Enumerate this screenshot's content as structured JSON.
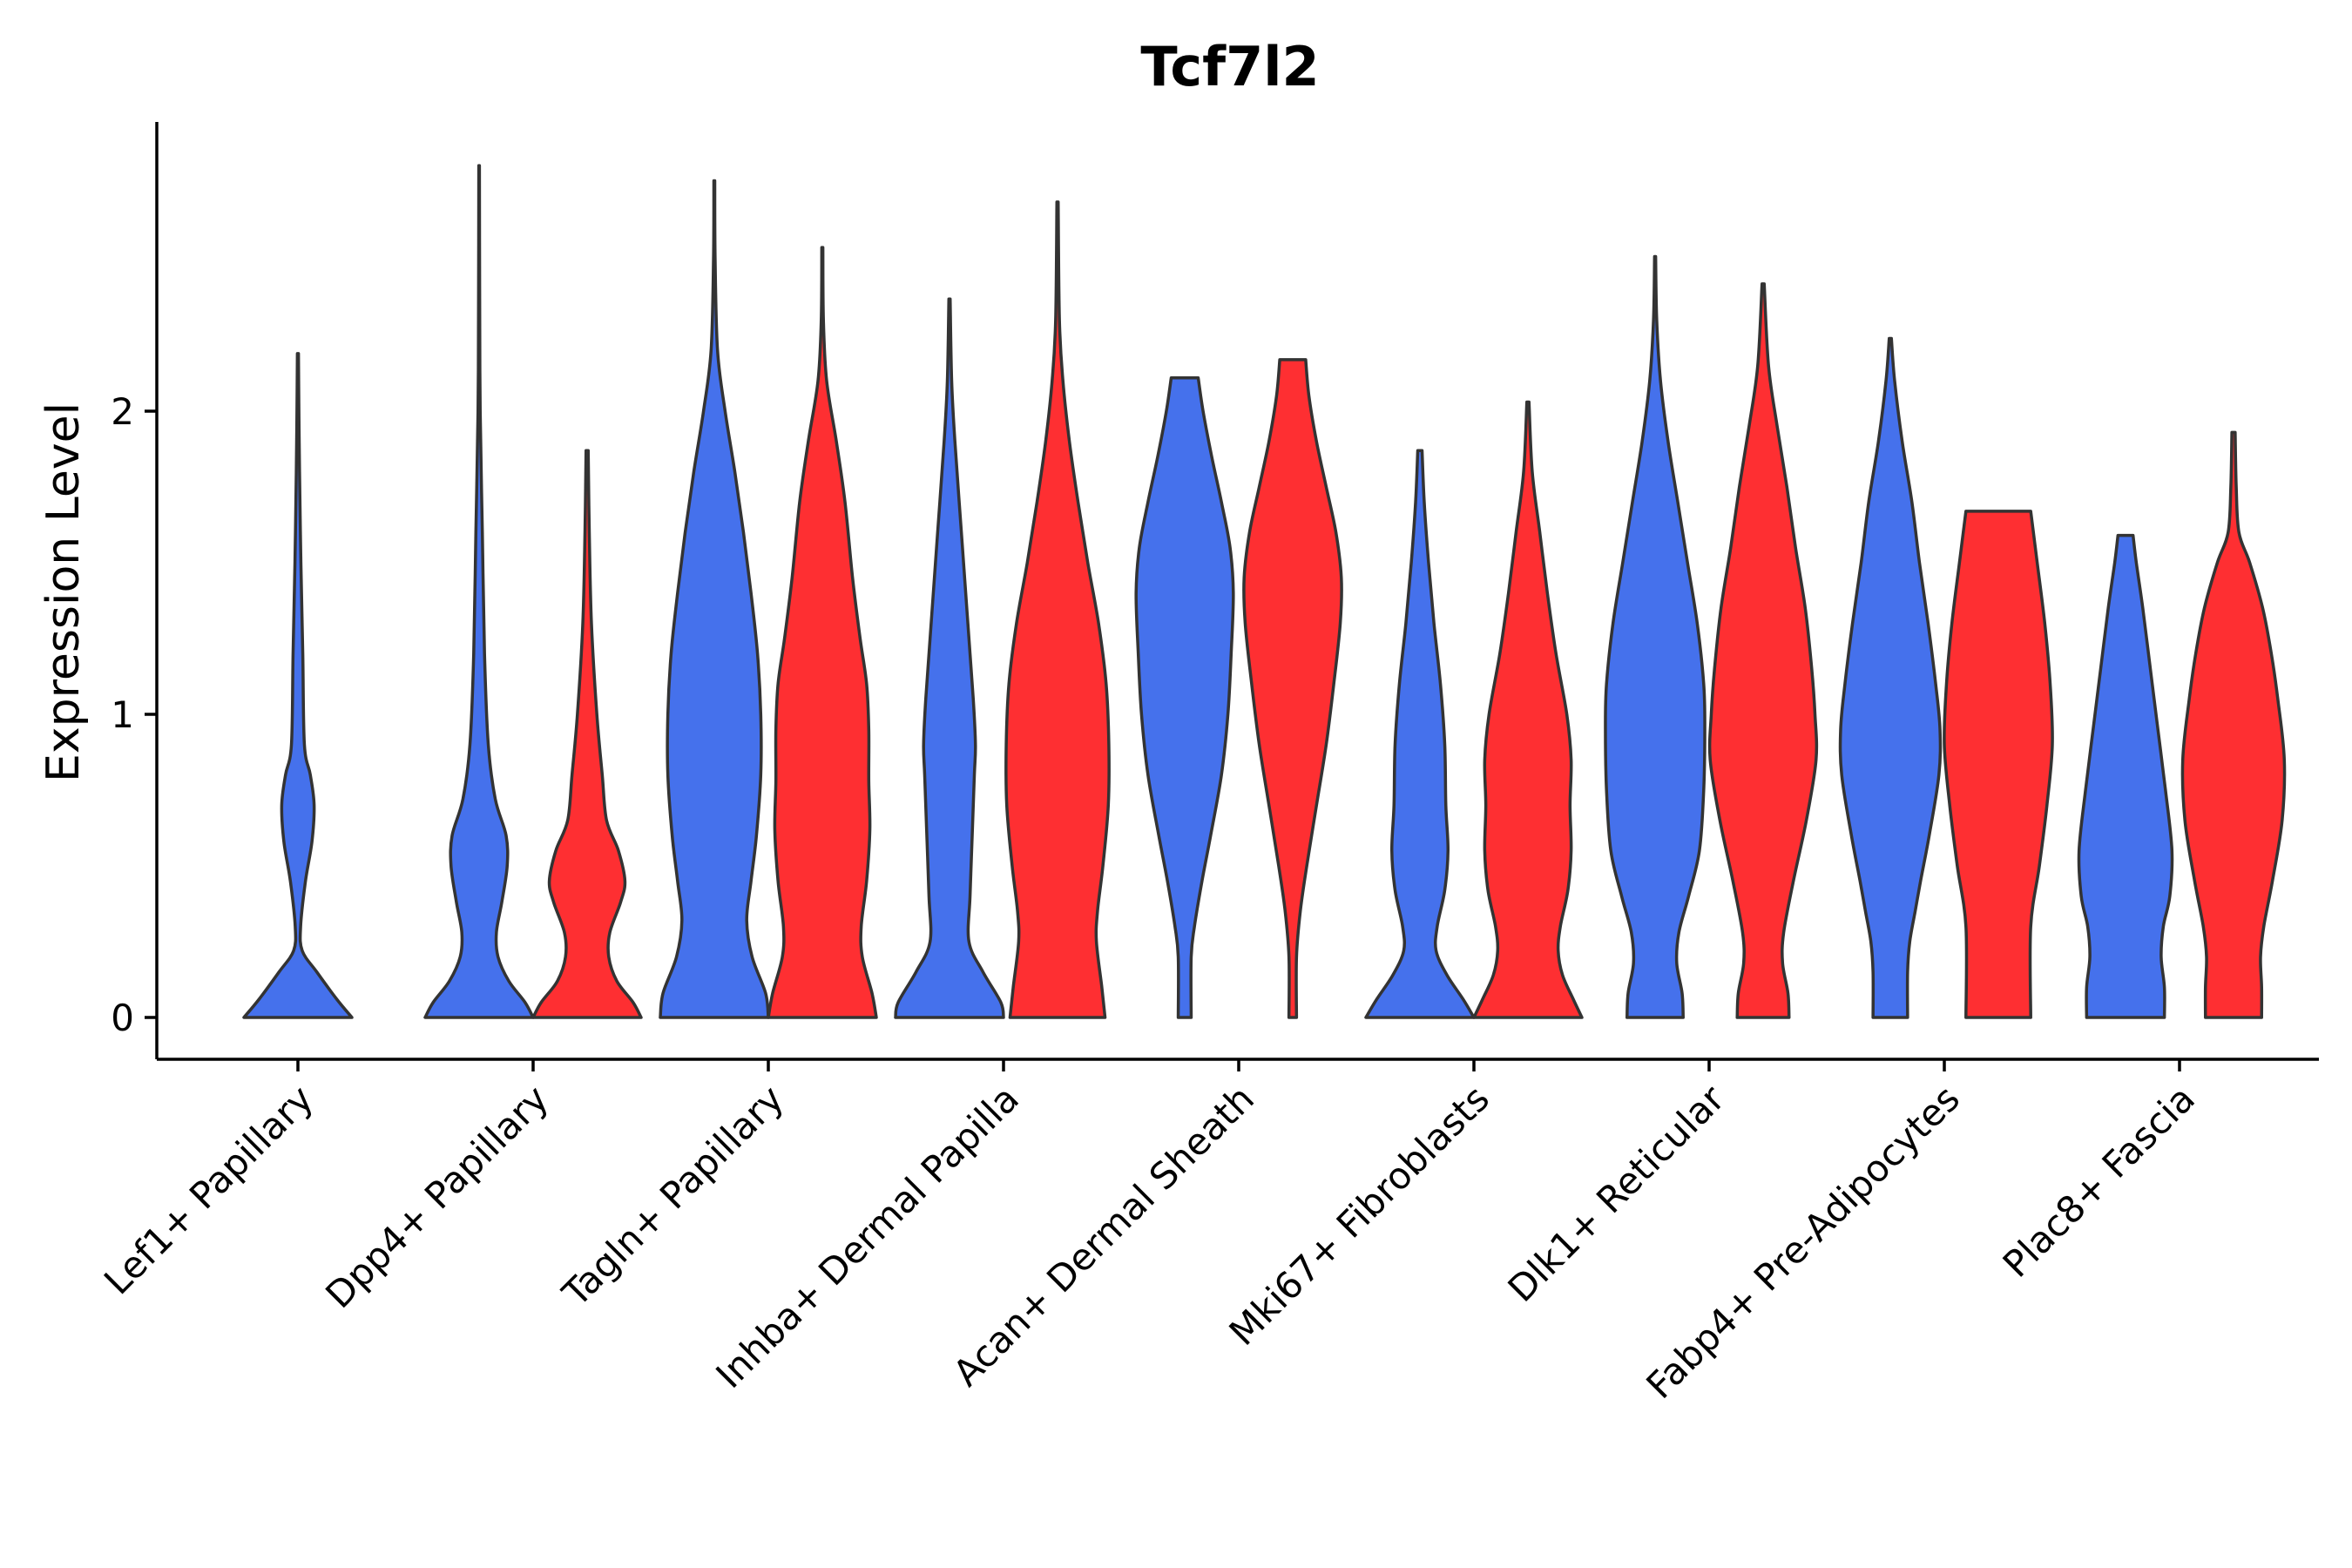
{
  "chart_data": {
    "type": "violin",
    "title": "Tcf7l2",
    "xlabel": "",
    "ylabel": "Expression Level",
    "ylim": [
      -0.14,
      2.97
    ],
    "y_ticks": [
      0,
      1,
      2
    ],
    "grid": false,
    "legend": "none",
    "categories": [
      "Lef1+ Papillary",
      "Dpp4+ Papillary",
      "Tagln+ Papillary",
      "Inhba+ Dermal Papilla",
      "Acan+ Dermal Sheath",
      "Mki67+ Fibroblasts",
      "Dlk1+ Reticular",
      "Fabp4+ Pre-Adipocytes",
      "Plac8+ Fascia"
    ],
    "colors": {
      "blue": "#4571ec",
      "red": "#fe2f32"
    },
    "violins": [
      {
        "category": "Lef1+ Papillary",
        "color": "blue",
        "slot": 0,
        "max_width_frac": 0.9,
        "profile": [
          [
            0,
            1.0
          ],
          [
            0.06,
            0.72
          ],
          [
            0.15,
            0.35
          ],
          [
            0.22,
            0.08
          ],
          [
            0.3,
            0.05
          ],
          [
            0.45,
            0.14
          ],
          [
            0.58,
            0.26
          ],
          [
            0.7,
            0.3
          ],
          [
            0.8,
            0.23
          ],
          [
            0.9,
            0.12
          ],
          [
            1.2,
            0.09
          ],
          [
            1.5,
            0.055
          ],
          [
            1.8,
            0.03
          ],
          [
            2.0,
            0.018
          ],
          [
            2.19,
            0.01
          ]
        ]
      },
      {
        "category": "Dpp4+ Papillary",
        "color": "blue",
        "slot": -1,
        "max_width_frac": 0.9,
        "profile": [
          [
            0,
            1.0
          ],
          [
            0.05,
            0.85
          ],
          [
            0.12,
            0.55
          ],
          [
            0.2,
            0.35
          ],
          [
            0.28,
            0.32
          ],
          [
            0.38,
            0.42
          ],
          [
            0.5,
            0.52
          ],
          [
            0.6,
            0.5
          ],
          [
            0.72,
            0.3
          ],
          [
            0.9,
            0.17
          ],
          [
            1.2,
            0.1
          ],
          [
            1.6,
            0.06
          ],
          [
            2.0,
            0.02
          ],
          [
            2.4,
            0.01
          ],
          [
            2.81,
            0.006
          ]
        ]
      },
      {
        "category": "Dpp4+ Papillary",
        "color": "red",
        "slot": 1,
        "max_width_frac": 0.9,
        "profile": [
          [
            0,
            1.0
          ],
          [
            0.05,
            0.85
          ],
          [
            0.12,
            0.55
          ],
          [
            0.2,
            0.4
          ],
          [
            0.28,
            0.42
          ],
          [
            0.38,
            0.62
          ],
          [
            0.45,
            0.7
          ],
          [
            0.55,
            0.58
          ],
          [
            0.65,
            0.36
          ],
          [
            0.8,
            0.28
          ],
          [
            1.0,
            0.18
          ],
          [
            1.3,
            0.08
          ],
          [
            1.6,
            0.04
          ],
          [
            1.87,
            0.02
          ]
        ]
      },
      {
        "category": "Tagln+ Papillary",
        "color": "blue",
        "slot": -1,
        "max_width_frac": 0.9,
        "profile": [
          [
            0,
            1.0
          ],
          [
            0.08,
            0.95
          ],
          [
            0.2,
            0.7
          ],
          [
            0.32,
            0.6
          ],
          [
            0.45,
            0.68
          ],
          [
            0.6,
            0.78
          ],
          [
            0.8,
            0.86
          ],
          [
            1.0,
            0.86
          ],
          [
            1.2,
            0.8
          ],
          [
            1.4,
            0.68
          ],
          [
            1.6,
            0.54
          ],
          [
            1.8,
            0.38
          ],
          [
            2.0,
            0.2
          ],
          [
            2.2,
            0.06
          ],
          [
            2.5,
            0.015
          ],
          [
            2.76,
            0.008
          ]
        ]
      },
      {
        "category": "Tagln+ Papillary",
        "color": "red",
        "slot": 1,
        "max_width_frac": 0.9,
        "profile": [
          [
            0,
            1.0
          ],
          [
            0.08,
            0.92
          ],
          [
            0.2,
            0.74
          ],
          [
            0.3,
            0.72
          ],
          [
            0.45,
            0.82
          ],
          [
            0.62,
            0.88
          ],
          [
            0.78,
            0.86
          ],
          [
            0.95,
            0.86
          ],
          [
            1.1,
            0.82
          ],
          [
            1.25,
            0.7
          ],
          [
            1.45,
            0.56
          ],
          [
            1.7,
            0.42
          ],
          [
            1.9,
            0.26
          ],
          [
            2.1,
            0.08
          ],
          [
            2.3,
            0.02
          ],
          [
            2.54,
            0.01
          ]
        ]
      },
      {
        "category": "Inhba+ Dermal Papilla",
        "color": "blue",
        "slot": -1,
        "max_width_frac": 0.9,
        "profile": [
          [
            0,
            1.0
          ],
          [
            0.05,
            0.95
          ],
          [
            0.15,
            0.62
          ],
          [
            0.25,
            0.36
          ],
          [
            0.4,
            0.38
          ],
          [
            0.6,
            0.42
          ],
          [
            0.8,
            0.46
          ],
          [
            0.9,
            0.48
          ],
          [
            1.05,
            0.44
          ],
          [
            1.3,
            0.34
          ],
          [
            1.6,
            0.22
          ],
          [
            1.9,
            0.1
          ],
          [
            2.1,
            0.04
          ],
          [
            2.37,
            0.012
          ]
        ]
      },
      {
        "category": "Inhba+ Dermal Papilla",
        "color": "red",
        "slot": 1,
        "max_width_frac": 0.9,
        "profile": [
          [
            0,
            0.88
          ],
          [
            0.1,
            0.82
          ],
          [
            0.25,
            0.72
          ],
          [
            0.35,
            0.74
          ],
          [
            0.5,
            0.84
          ],
          [
            0.7,
            0.94
          ],
          [
            0.9,
            0.95
          ],
          [
            1.1,
            0.9
          ],
          [
            1.3,
            0.76
          ],
          [
            1.5,
            0.56
          ],
          [
            1.7,
            0.38
          ],
          [
            1.9,
            0.22
          ],
          [
            2.1,
            0.1
          ],
          [
            2.3,
            0.035
          ],
          [
            2.69,
            0.012
          ]
        ]
      },
      {
        "category": "Acan+ Dermal Sheath",
        "color": "blue",
        "slot": -1,
        "max_width_frac": 0.9,
        "profile": [
          [
            0,
            0.12
          ],
          [
            0.2,
            0.12
          ],
          [
            0.3,
            0.18
          ],
          [
            0.45,
            0.32
          ],
          [
            0.6,
            0.48
          ],
          [
            0.8,
            0.68
          ],
          [
            1.0,
            0.8
          ],
          [
            1.2,
            0.86
          ],
          [
            1.4,
            0.9
          ],
          [
            1.55,
            0.84
          ],
          [
            1.7,
            0.68
          ],
          [
            1.85,
            0.5
          ],
          [
            2.0,
            0.34
          ],
          [
            2.11,
            0.25
          ]
        ]
      },
      {
        "category": "Acan+ Dermal Sheath",
        "color": "red",
        "slot": 1,
        "max_width_frac": 0.9,
        "profile": [
          [
            0,
            0.07
          ],
          [
            0.2,
            0.07
          ],
          [
            0.35,
            0.14
          ],
          [
            0.5,
            0.26
          ],
          [
            0.7,
            0.44
          ],
          [
            0.9,
            0.62
          ],
          [
            1.1,
            0.76
          ],
          [
            1.3,
            0.88
          ],
          [
            1.45,
            0.9
          ],
          [
            1.6,
            0.8
          ],
          [
            1.75,
            0.62
          ],
          [
            1.9,
            0.44
          ],
          [
            2.05,
            0.3
          ],
          [
            2.17,
            0.24
          ]
        ]
      },
      {
        "category": "Mki67+ Fibroblasts",
        "color": "blue",
        "slot": -1,
        "max_width_frac": 0.9,
        "profile": [
          [
            0,
            1.0
          ],
          [
            0.06,
            0.8
          ],
          [
            0.14,
            0.5
          ],
          [
            0.22,
            0.3
          ],
          [
            0.3,
            0.32
          ],
          [
            0.42,
            0.46
          ],
          [
            0.55,
            0.52
          ],
          [
            0.7,
            0.48
          ],
          [
            0.9,
            0.46
          ],
          [
            1.1,
            0.38
          ],
          [
            1.3,
            0.26
          ],
          [
            1.5,
            0.16
          ],
          [
            1.7,
            0.08
          ],
          [
            1.87,
            0.04
          ]
        ]
      },
      {
        "category": "Mki67+ Fibroblasts",
        "color": "red",
        "slot": 1,
        "max_width_frac": 0.9,
        "profile": [
          [
            0,
            1.0
          ],
          [
            0.06,
            0.84
          ],
          [
            0.14,
            0.64
          ],
          [
            0.22,
            0.56
          ],
          [
            0.3,
            0.6
          ],
          [
            0.42,
            0.74
          ],
          [
            0.55,
            0.8
          ],
          [
            0.7,
            0.78
          ],
          [
            0.85,
            0.8
          ],
          [
            1.0,
            0.72
          ],
          [
            1.2,
            0.52
          ],
          [
            1.4,
            0.36
          ],
          [
            1.6,
            0.22
          ],
          [
            1.8,
            0.08
          ],
          [
            2.03,
            0.02
          ]
        ]
      },
      {
        "category": "Dlk1+ Reticular",
        "color": "blue",
        "slot": -1,
        "max_width_frac": 0.9,
        "profile": [
          [
            0,
            0.52
          ],
          [
            0.08,
            0.5
          ],
          [
            0.18,
            0.4
          ],
          [
            0.28,
            0.44
          ],
          [
            0.4,
            0.62
          ],
          [
            0.55,
            0.82
          ],
          [
            0.75,
            0.9
          ],
          [
            0.95,
            0.92
          ],
          [
            1.1,
            0.9
          ],
          [
            1.3,
            0.78
          ],
          [
            1.5,
            0.6
          ],
          [
            1.7,
            0.42
          ],
          [
            1.9,
            0.24
          ],
          [
            2.1,
            0.1
          ],
          [
            2.3,
            0.03
          ],
          [
            2.51,
            0.01
          ]
        ]
      },
      {
        "category": "Dlk1+ Reticular",
        "color": "red",
        "slot": 1,
        "max_width_frac": 0.9,
        "profile": [
          [
            0,
            0.48
          ],
          [
            0.08,
            0.46
          ],
          [
            0.18,
            0.36
          ],
          [
            0.28,
            0.38
          ],
          [
            0.45,
            0.56
          ],
          [
            0.65,
            0.8
          ],
          [
            0.85,
            0.98
          ],
          [
            1.0,
            0.96
          ],
          [
            1.15,
            0.9
          ],
          [
            1.35,
            0.78
          ],
          [
            1.55,
            0.6
          ],
          [
            1.75,
            0.44
          ],
          [
            1.95,
            0.26
          ],
          [
            2.15,
            0.1
          ],
          [
            2.42,
            0.02
          ]
        ]
      },
      {
        "category": "Fabp4+ Pre-Adipocytes",
        "color": "blue",
        "slot": -1,
        "max_width_frac": 0.9,
        "profile": [
          [
            0,
            0.32
          ],
          [
            0.15,
            0.32
          ],
          [
            0.25,
            0.36
          ],
          [
            0.35,
            0.46
          ],
          [
            0.45,
            0.56
          ],
          [
            0.6,
            0.72
          ],
          [
            0.8,
            0.9
          ],
          [
            0.95,
            0.92
          ],
          [
            1.1,
            0.84
          ],
          [
            1.3,
            0.7
          ],
          [
            1.5,
            0.54
          ],
          [
            1.7,
            0.4
          ],
          [
            1.9,
            0.22
          ],
          [
            2.1,
            0.08
          ],
          [
            2.24,
            0.02
          ]
        ]
      },
      {
        "category": "Fabp4+ Pre-Adipocytes",
        "color": "red",
        "slot": 1,
        "max_width_frac": 0.9,
        "profile": [
          [
            0,
            0.6
          ],
          [
            0.3,
            0.6
          ],
          [
            0.5,
            0.76
          ],
          [
            0.7,
            0.9
          ],
          [
            0.9,
            1.0
          ],
          [
            1.1,
            0.96
          ],
          [
            1.3,
            0.86
          ],
          [
            1.5,
            0.72
          ],
          [
            1.67,
            0.6
          ]
        ]
      },
      {
        "category": "Plac8+ Fascia",
        "color": "blue",
        "slot": -1,
        "max_width_frac": 0.9,
        "profile": [
          [
            0,
            0.72
          ],
          [
            0.1,
            0.72
          ],
          [
            0.2,
            0.66
          ],
          [
            0.3,
            0.7
          ],
          [
            0.4,
            0.82
          ],
          [
            0.55,
            0.86
          ],
          [
            0.75,
            0.74
          ],
          [
            0.95,
            0.6
          ],
          [
            1.15,
            0.46
          ],
          [
            1.35,
            0.32
          ],
          [
            1.5,
            0.2
          ],
          [
            1.59,
            0.14
          ]
        ]
      },
      {
        "category": "Plac8+ Fascia",
        "color": "red",
        "slot": 1,
        "max_width_frac": 0.9,
        "profile": [
          [
            0,
            0.52
          ],
          [
            0.1,
            0.52
          ],
          [
            0.2,
            0.5
          ],
          [
            0.3,
            0.56
          ],
          [
            0.45,
            0.72
          ],
          [
            0.65,
            0.9
          ],
          [
            0.85,
            0.94
          ],
          [
            1.05,
            0.82
          ],
          [
            1.2,
            0.7
          ],
          [
            1.35,
            0.54
          ],
          [
            1.5,
            0.3
          ],
          [
            1.6,
            0.1
          ],
          [
            1.75,
            0.05
          ],
          [
            1.93,
            0.03
          ]
        ]
      }
    ]
  }
}
